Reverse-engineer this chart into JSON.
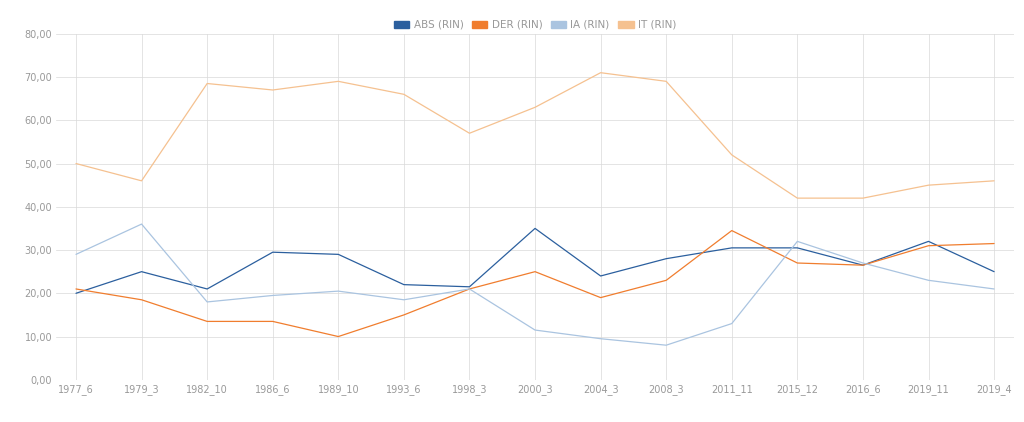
{
  "x_labels": [
    "1977_6",
    "1979_3",
    "1982_10",
    "1986_6",
    "1989_10",
    "1993_6",
    "1998_3",
    "2000_3",
    "2004_3",
    "2008_3",
    "2011_11",
    "2015_12",
    "2016_6",
    "2019_11",
    "2019_4"
  ],
  "ABS_vals": [
    20,
    25,
    21,
    29.5,
    29,
    22,
    21.5,
    35,
    24,
    28,
    30.5,
    30.5,
    26.5,
    32,
    25
  ],
  "DER_vals": [
    21,
    18.5,
    13.5,
    13.5,
    10,
    15,
    21,
    25,
    19,
    23,
    34.5,
    27,
    26.5,
    31,
    31.5
  ],
  "IA_vals": [
    29,
    36,
    18,
    19.5,
    20.5,
    18.5,
    21,
    11.5,
    9.5,
    8,
    13,
    32,
    27,
    23,
    21
  ],
  "IT_vals": [
    50,
    46,
    68.5,
    67,
    69,
    66,
    57,
    63,
    71,
    69,
    52,
    42,
    42,
    45,
    46
  ],
  "ABS_label": "ABS (RIN)",
  "DER_label": "DER (RIN)",
  "IA_label": "IA (RIN)",
  "IT_label": "IT (RIN)",
  "ABS_color": "#2b5f9e",
  "DER_color": "#f07d2e",
  "IA_color": "#aac4e0",
  "IT_color": "#f5c190",
  "ylim": [
    0,
    80
  ],
  "yticks": [
    0,
    10,
    20,
    30,
    40,
    50,
    60,
    70,
    80
  ],
  "background_color": "#ffffff",
  "grid_color": "#d9d9d9",
  "tick_color": "#999999",
  "tick_fontsize": 7,
  "legend_fontsize": 7.5,
  "linewidth": 0.9
}
